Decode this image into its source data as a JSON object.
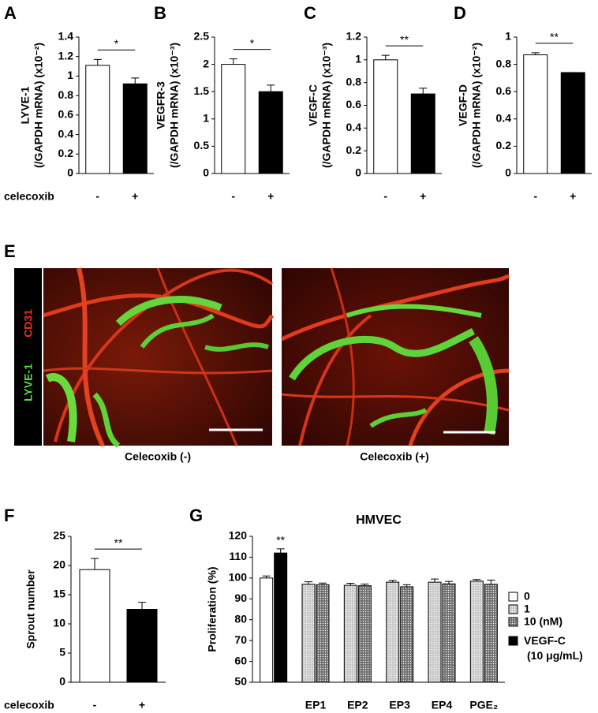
{
  "chart_data": [
    {
      "type": "bar",
      "panel": "A",
      "ylabel": [
        "LYVE-1",
        "(/GAPDH mRNA) (x10⁻²)"
      ],
      "xlabel": "celecoxib",
      "categories": [
        "-",
        "+"
      ],
      "values": [
        1.11,
        0.92
      ],
      "errors": [
        0.06,
        0.06
      ],
      "colors": [
        "#ffffff",
        "#000000"
      ],
      "significance": "*",
      "ylim": [
        0,
        1.4
      ],
      "yticks": [
        0,
        0.2,
        0.4,
        0.6,
        0.8,
        1,
        1.2,
        1.4
      ]
    },
    {
      "type": "bar",
      "panel": "B",
      "ylabel": [
        "VEGFR-3",
        "(/GAPDH mRNA) (x10⁻³)"
      ],
      "categories": [
        "-",
        "+"
      ],
      "values": [
        2.0,
        1.5
      ],
      "errors": [
        0.1,
        0.12
      ],
      "colors": [
        "#ffffff",
        "#000000"
      ],
      "significance": "*",
      "ylim": [
        0,
        2.5
      ],
      "yticks": [
        0,
        0.5,
        1,
        1.5,
        2,
        2.5
      ]
    },
    {
      "type": "bar",
      "panel": "C",
      "ylabel": [
        "VEGF-C",
        "(/GAPDH mRNA) (x10⁻³)"
      ],
      "categories": [
        "-",
        "+"
      ],
      "values": [
        1.0,
        0.7
      ],
      "errors": [
        0.04,
        0.05
      ],
      "colors": [
        "#ffffff",
        "#000000"
      ],
      "significance": "**",
      "ylim": [
        0,
        1.2
      ],
      "yticks": [
        0,
        0.2,
        0.4,
        0.6,
        0.8,
        1,
        1.2
      ]
    },
    {
      "type": "bar",
      "panel": "D",
      "ylabel": [
        "VEGF-D",
        "(/GAPDH mRNA) (x10⁻²)"
      ],
      "categories": [
        "-",
        "+"
      ],
      "values": [
        0.87,
        0.74
      ],
      "errors": [
        0.015,
        0
      ],
      "colors": [
        "#ffffff",
        "#000000"
      ],
      "significance": "**",
      "ylim": [
        0,
        1
      ],
      "yticks": [
        0,
        0.2,
        0.4,
        0.6,
        0.8,
        1
      ]
    },
    {
      "type": "bar",
      "panel": "F",
      "ylabel": [
        "Sprout number"
      ],
      "xlabel": "celecoxib",
      "categories": [
        "-",
        "+"
      ],
      "values": [
        19.3,
        12.5
      ],
      "errors": [
        1.9,
        1.2
      ],
      "colors": [
        "#ffffff",
        "#000000"
      ],
      "significance": "**",
      "ylim": [
        0,
        25
      ],
      "yticks": [
        0,
        5,
        10,
        15,
        20,
        25
      ]
    },
    {
      "type": "grouped-bar",
      "panel": "G",
      "title": "HMVEC",
      "ylabel": [
        "Proliferation (%)"
      ],
      "categories": [
        null,
        "EP1",
        "EP2",
        "EP3",
        "EP4",
        "PGE₂"
      ],
      "series": [
        {
          "name": "0",
          "color": "#ffffff",
          "values": [
            100,
            null,
            null,
            null,
            null,
            null
          ],
          "errors": [
            1,
            null,
            null,
            null,
            null,
            null
          ]
        },
        {
          "name": "1",
          "color": "#c8c8c8",
          "values": [
            null,
            97,
            96.5,
            98,
            98,
            98.5
          ],
          "errors": [
            null,
            1.2,
            1,
            0.8,
            1.5,
            0.8
          ]
        },
        {
          "name": "10 (nM)",
          "color": "#6e6e6e",
          "values": [
            null,
            96.8,
            96.3,
            95.8,
            97.2,
            97
          ],
          "errors": [
            null,
            0.8,
            0.8,
            1,
            1.2,
            2
          ]
        },
        {
          "name": "VEGF-C (10 μg/mL)",
          "color": "#000000",
          "values": [
            112,
            null,
            null,
            null,
            null,
            null
          ],
          "errors": [
            2,
            null,
            null,
            null,
            null,
            null
          ]
        }
      ],
      "significance": "**",
      "ylim": [
        50,
        120
      ],
      "yticks": [
        50,
        60,
        70,
        80,
        90,
        100,
        110,
        120
      ]
    }
  ],
  "panel_e": {
    "label": "E",
    "stains": [
      "LYVE-1",
      "CD31"
    ],
    "captions": [
      "Celecoxib (-)",
      "Celecoxib (+)"
    ]
  }
}
